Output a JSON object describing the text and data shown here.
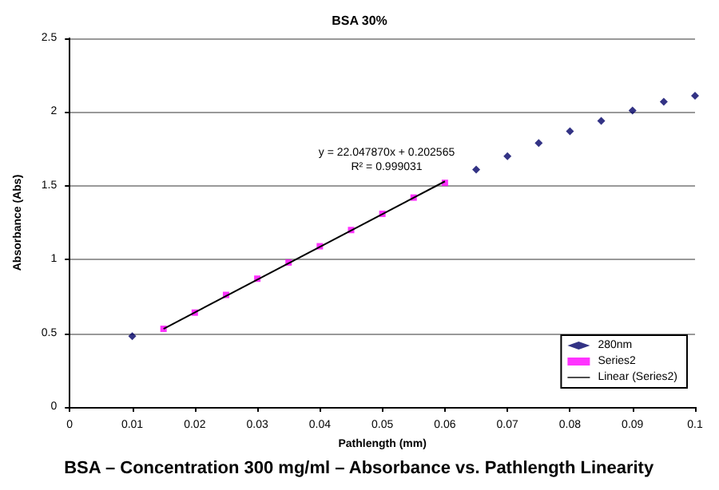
{
  "chart_data": {
    "type": "scatter",
    "title": "BSA 30%",
    "xlabel": "Pathlength (mm)",
    "ylabel": "Absorbance (Abs)",
    "annotations": [
      "y = 22.047870x + 0.202565",
      "R² = 0.999031",
      "BSA – Concentration 300 mg/ml – Absorbance vs. Pathlength Linearity"
    ],
    "series": [
      {
        "name": "280nm",
        "type": "scatter",
        "marker": "diamond",
        "color": "#000066",
        "x": [
          0.01,
          0.065,
          0.07,
          0.075,
          0.08,
          0.085,
          0.09,
          0.095,
          0.1
        ],
        "values": [
          0.48,
          1.61,
          1.7,
          1.79,
          1.87,
          1.94,
          2.01,
          2.07,
          2.11
        ]
      },
      {
        "name": "Series2",
        "type": "scatter",
        "marker": "square",
        "color": "#ff00ff",
        "x": [
          0.015,
          0.02,
          0.025,
          0.03,
          0.035,
          0.04,
          0.045,
          0.05,
          0.055,
          0.06
        ],
        "values": [
          0.53,
          0.64,
          0.76,
          0.87,
          0.98,
          1.09,
          1.2,
          1.31,
          1.42,
          1.52
        ]
      },
      {
        "name": "Linear (Series2)",
        "type": "line",
        "marker": "none",
        "line_style": "solid",
        "color": "#000000",
        "x": [
          0.015,
          0.06
        ],
        "values": [
          0.53,
          1.53
        ]
      }
    ],
    "xlim": [
      0,
      0.1
    ],
    "xticks": [
      0,
      0.01,
      0.02,
      0.03,
      0.04,
      0.05,
      0.06,
      0.07,
      0.08,
      0.09,
      0.1
    ],
    "ylim": [
      0,
      2.5
    ],
    "yticks": [
      0,
      0.5,
      1,
      1.5,
      2,
      2.5
    ],
    "grid": "y",
    "legend": "bottom right"
  }
}
